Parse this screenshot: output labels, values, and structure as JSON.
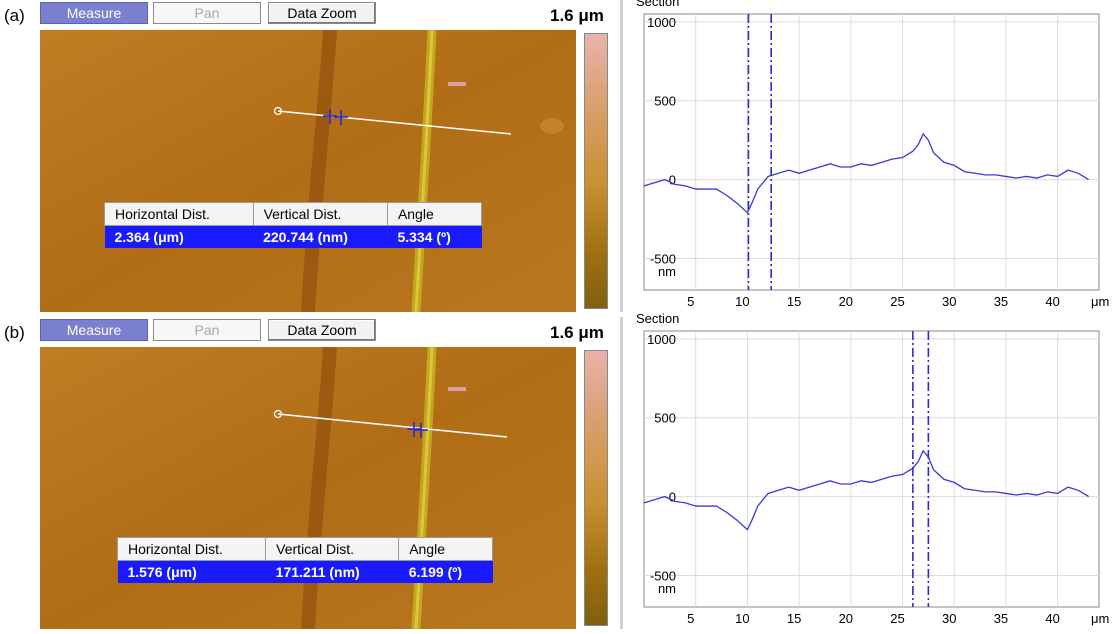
{
  "panels": [
    {
      "label": "(a)",
      "toolbar": {
        "measure_label": "Measure",
        "pan_label": "Pan",
        "zoom_label": "Data Zoom"
      },
      "scale_label": "1.6 μm",
      "section_title": "Section",
      "table": {
        "headers": [
          "Horizontal Dist.",
          "Vertical Dist.",
          "Angle"
        ],
        "values": [
          "2.364 (μm)",
          "220.744 (nm)",
          "5.334 (º)"
        ]
      },
      "cursors_um": [
        10.1,
        12.3
      ]
    },
    {
      "label": "(b)",
      "toolbar": {
        "measure_label": "Measure",
        "pan_label": "Pan",
        "zoom_label": "Data Zoom"
      },
      "scale_label": "1.6 μm",
      "section_title": "Section",
      "table": {
        "headers": [
          "Horizontal Dist.",
          "Vertical Dist.",
          "Angle"
        ],
        "values": [
          "1.576 (μm)",
          "171.211 (nm)",
          "6.199 (º)"
        ]
      },
      "cursors_um": [
        26,
        27.5
      ]
    }
  ],
  "colors": {
    "profile": "#3a3ad8",
    "cursor": "#2a2ad0",
    "grid": "#dcdcdc",
    "afm_base": "#b8741a"
  },
  "chart_data": {
    "type": "line",
    "ylim": [
      -700,
      1050
    ],
    "xlim": [
      0,
      44
    ],
    "yticks": [
      "1000",
      "500",
      "0",
      "-500",
      "nm"
    ],
    "ytick_values": [
      1000,
      500,
      0,
      -500,
      -960
    ],
    "xticks": [
      "5",
      "10",
      "15",
      "20",
      "25",
      "30",
      "35",
      "40",
      "μm"
    ],
    "xtick_values": [
      5,
      10,
      15,
      20,
      25,
      30,
      35,
      40,
      44.6
    ],
    "series": [
      {
        "x": [
          0,
          1,
          2,
          3,
          4,
          5,
          6,
          7,
          8,
          9,
          10,
          10.5,
          11,
          12,
          13,
          14,
          15,
          16,
          17,
          18,
          19,
          20,
          21,
          22,
          23,
          24,
          25,
          26,
          26.5,
          27,
          27.5,
          28,
          29,
          30,
          31,
          32,
          33,
          34,
          35,
          36,
          37,
          38,
          39,
          40,
          41,
          42,
          43
        ],
        "y": [
          -40,
          -20,
          0,
          -30,
          -40,
          -60,
          -60,
          -60,
          -100,
          -150,
          -210,
          -140,
          -60,
          20,
          40,
          60,
          40,
          60,
          80,
          100,
          80,
          80,
          100,
          90,
          110,
          130,
          140,
          180,
          220,
          290,
          250,
          170,
          110,
          90,
          50,
          40,
          30,
          30,
          20,
          10,
          20,
          10,
          30,
          20,
          60,
          40,
          0
        ]
      }
    ]
  }
}
